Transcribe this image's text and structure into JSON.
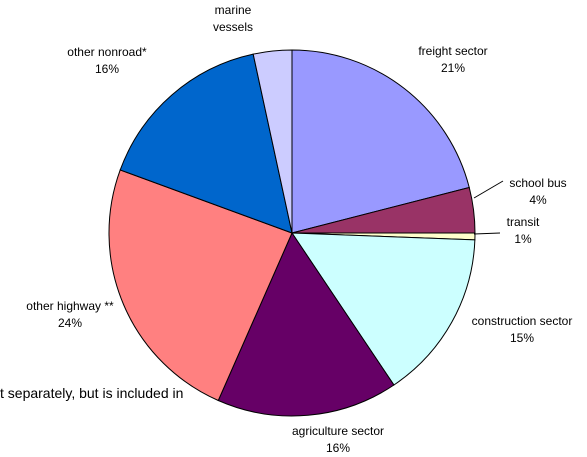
{
  "chart_data": {
    "type": "pie",
    "title": "",
    "slices": [
      {
        "lines": [
          "freight sector",
          "21%"
        ],
        "value": 21,
        "color": "#9999FF"
      },
      {
        "lines": [
          "school bus",
          "4%"
        ],
        "value": 4,
        "color": "#993366"
      },
      {
        "lines": [
          "transit",
          "1%"
        ],
        "value": 0.6,
        "color": "#FFFFCC"
      },
      {
        "lines": [
          "construction sector",
          "15%"
        ],
        "value": 15,
        "color": "#CCFFFF"
      },
      {
        "lines": [
          "agriculture sector",
          "16%"
        ],
        "value": 16,
        "color": "#660066"
      },
      {
        "lines": [
          "other highway **",
          "24%"
        ],
        "value": 24,
        "color": "#FF8080"
      },
      {
        "lines": [
          "other nonroad*",
          "16%"
        ],
        "value": 16,
        "color": "#0066CC"
      },
      {
        "lines": [
          "marine",
          "vessels"
        ],
        "value": 3.4,
        "color": "#CCCCFF"
      }
    ]
  },
  "footnote": "t separately, but is included in"
}
